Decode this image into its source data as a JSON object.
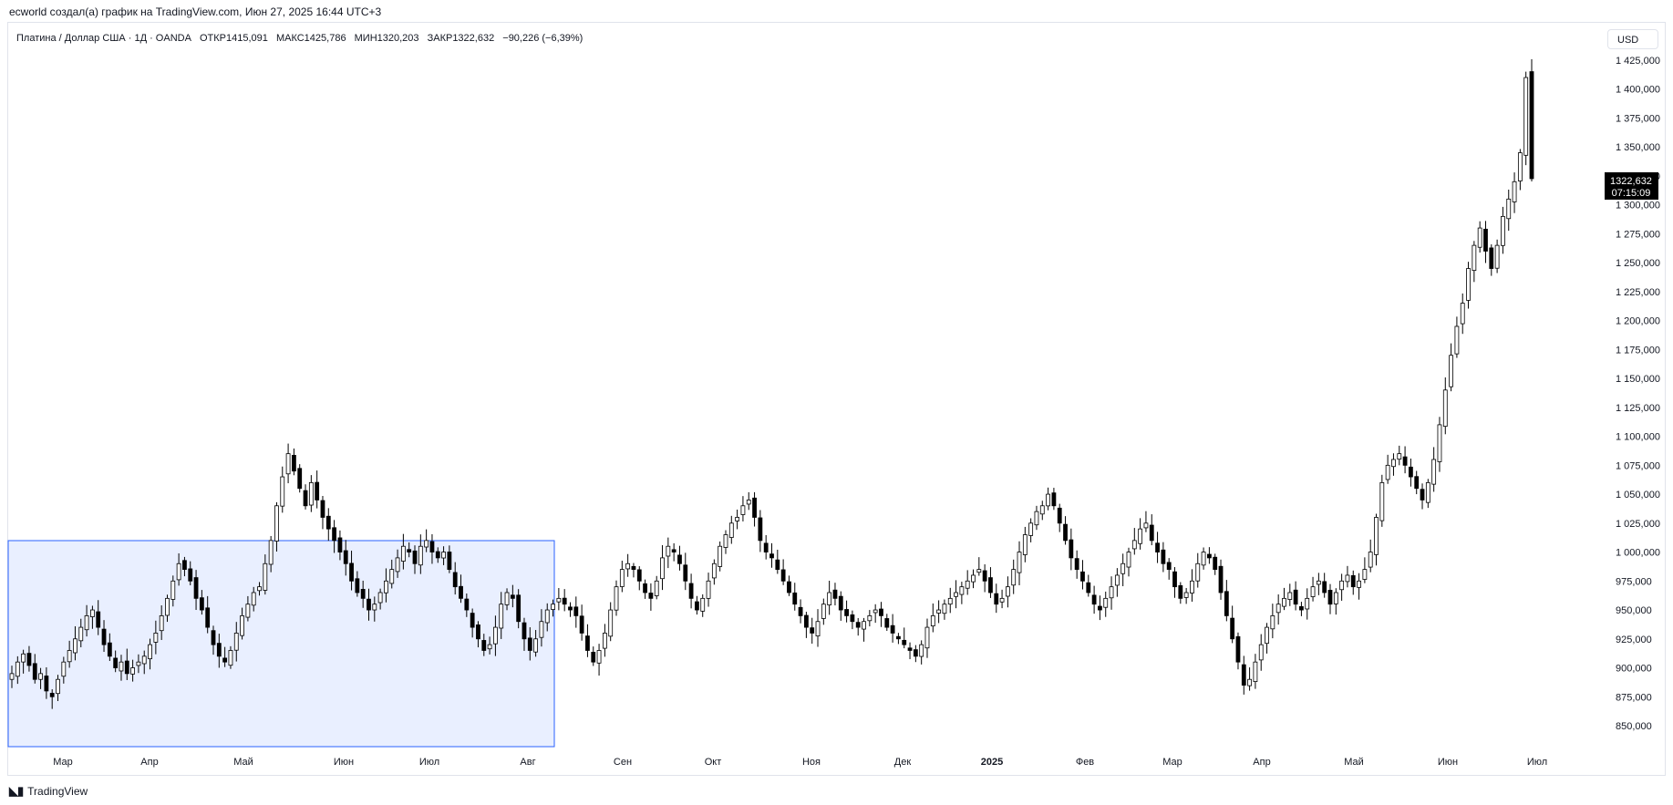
{
  "caption": "ecworld создал(а) график на TradingView.com, Июн 27, 2025 16:44 UTC+3",
  "legend": {
    "symbol": "Платина / Доллар США · 1Д · OANDA",
    "open": "ОТКР1415,091",
    "high": "МАКС1425,786",
    "low": "МИН1320,203",
    "close": "ЗАКР1322,632",
    "change": "−90,226 (−6,39%)"
  },
  "currency_button": "USD",
  "price_label": {
    "price": "1322,632",
    "countdown": "07:15:09"
  },
  "footer": {
    "logo": "𝟭𝟳",
    "brand": "TradingView"
  },
  "chart_data": {
    "type": "candlestick",
    "title": "Платина / Доллар США · 1Д · OANDA",
    "ylim": [
      835,
      1440
    ],
    "y_ticks": [
      "850,000",
      "875,000",
      "900,000",
      "925,000",
      "950,000",
      "975,000",
      "1 000,000",
      "1 025,000",
      "1 050,000",
      "1 075,000",
      "1 100,000",
      "1 125,000",
      "1 150,000",
      "1 175,000",
      "1 200,000",
      "1 225,000",
      "1 250,000",
      "1 275,000",
      "1 300,000",
      "1 325,000",
      "1 350,000",
      "1 375,000",
      "1 400,000",
      "1 425,000"
    ],
    "y_tick_values": [
      850,
      875,
      900,
      925,
      950,
      975,
      1000,
      1025,
      1050,
      1075,
      1100,
      1125,
      1150,
      1175,
      1200,
      1225,
      1250,
      1275,
      1300,
      1325,
      1350,
      1375,
      1400,
      1425
    ],
    "x_ticks": [
      "Мар",
      "Апр",
      "Май",
      "Июн",
      "Июл",
      "Авг",
      "Сен",
      "Окт",
      "Ноя",
      "Дек",
      "2025",
      "Фев",
      "Мар",
      "Апр",
      "Май",
      "Июн",
      "Июл"
    ],
    "x_tick_bold": [
      false,
      false,
      false,
      false,
      false,
      false,
      false,
      false,
      false,
      false,
      true,
      false,
      false,
      false,
      false,
      false,
      false
    ],
    "series_close": [
      895,
      905,
      912,
      902,
      890,
      895,
      880,
      875,
      890,
      905,
      915,
      925,
      935,
      945,
      950,
      935,
      920,
      910,
      900,
      905,
      895,
      900,
      905,
      910,
      920,
      930,
      945,
      960,
      975,
      990,
      985,
      975,
      960,
      950,
      935,
      920,
      910,
      905,
      915,
      930,
      945,
      955,
      965,
      970,
      990,
      1010,
      1040,
      1065,
      1085,
      1070,
      1055,
      1040,
      1060,
      1045,
      1030,
      1020,
      1010,
      1000,
      990,
      975,
      965,
      960,
      950,
      955,
      965,
      975,
      985,
      995,
      1005,
      1000,
      990,
      1005,
      1010,
      1000,
      995,
      1000,
      985,
      970,
      960,
      950,
      935,
      925,
      915,
      920,
      935,
      955,
      965,
      960,
      940,
      925,
      915,
      925,
      940,
      950,
      955,
      960,
      955,
      950,
      945,
      930,
      915,
      905,
      915,
      930,
      950,
      970,
      985,
      990,
      985,
      975,
      965,
      960,
      975,
      995,
      1005,
      1000,
      990,
      975,
      960,
      950,
      960,
      975,
      990,
      1005,
      1015,
      1025,
      1030,
      1040,
      1045,
      1030,
      1010,
      1000,
      995,
      985,
      975,
      965,
      955,
      945,
      935,
      930,
      940,
      955,
      965,
      960,
      950,
      945,
      940,
      935,
      940,
      945,
      950,
      945,
      935,
      930,
      925,
      920,
      915,
      910,
      920,
      935,
      945,
      950,
      955,
      960,
      965,
      970,
      975,
      980,
      985,
      975,
      965,
      955,
      960,
      970,
      985,
      1000,
      1015,
      1025,
      1035,
      1040,
      1050,
      1040,
      1025,
      1010,
      995,
      985,
      975,
      965,
      955,
      950,
      960,
      970,
      980,
      990,
      1000,
      1010,
      1020,
      1025,
      1010,
      1000,
      990,
      985,
      970,
      960,
      965,
      975,
      990,
      1000,
      995,
      985,
      965,
      945,
      925,
      905,
      885,
      890,
      905,
      920,
      935,
      945,
      955,
      960,
      965,
      955,
      950,
      960,
      970,
      975,
      965,
      955,
      965,
      975,
      980,
      970,
      975,
      985,
      1000,
      1030,
      1060,
      1075,
      1080,
      1085,
      1075,
      1065,
      1055,
      1045,
      1060,
      1080,
      1110,
      1140,
      1170,
      1195,
      1215,
      1245,
      1265,
      1280,
      1260,
      1245,
      1265,
      1290,
      1305,
      1320,
      1345,
      1410,
      1322.632
    ]
  }
}
